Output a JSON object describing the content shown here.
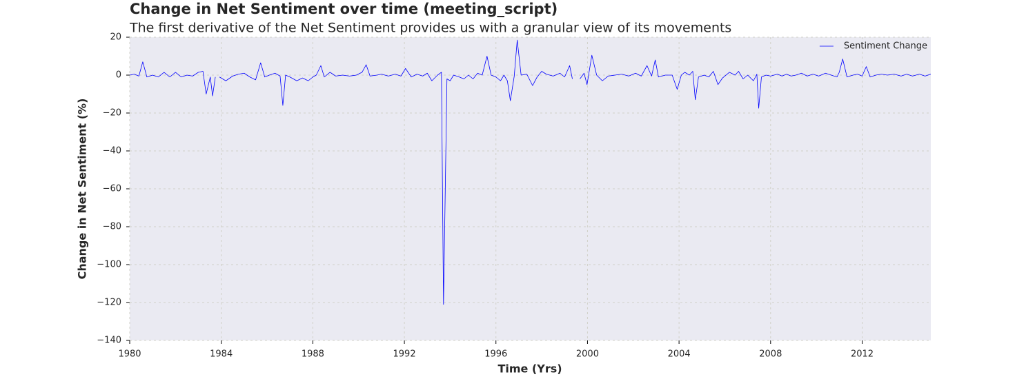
{
  "chart_data": {
    "type": "line",
    "title": "Change in Net Sentiment over time (meeting_script)",
    "subtitle": "The first derivative of the Net Sentiment provides us with a granular view of its movements",
    "x_label": "Time (Yrs)",
    "y_label": "Change in Net Sentiment (%)",
    "xlim": [
      1980,
      2015
    ],
    "ylim": [
      -140,
      20
    ],
    "xticks": [
      1980,
      1984,
      1988,
      1992,
      1996,
      2000,
      2004,
      2008,
      2012
    ],
    "yticks": [
      {
        "value": -140,
        "label": "−140"
      },
      {
        "value": -120,
        "label": "−120"
      },
      {
        "value": -100,
        "label": "−100"
      },
      {
        "value": -80,
        "label": "−80"
      },
      {
        "value": -60,
        "label": "−60"
      },
      {
        "value": -40,
        "label": "−40"
      },
      {
        "value": -20,
        "label": "−20"
      },
      0,
      20
    ],
    "grid": true,
    "legend": "upper right",
    "x": [
      1980.0,
      1980.2,
      1980.4,
      1980.57,
      1980.75,
      1981.0,
      1981.25,
      1981.5,
      1981.75,
      1982.0,
      1982.25,
      1982.5,
      1982.75,
      1983.0,
      1983.2,
      1983.34,
      1983.52,
      1983.62,
      1983.74,
      1983.83,
      1983.92,
      1984.2,
      1984.5,
      1984.75,
      1985.0,
      1985.25,
      1985.5,
      1985.72,
      1985.9,
      1986.1,
      1986.35,
      1986.57,
      1986.69,
      1986.81,
      1987.0,
      1987.3,
      1987.55,
      1987.8,
      1988.0,
      1988.15,
      1988.35,
      1988.5,
      1988.75,
      1989.0,
      1989.3,
      1989.6,
      1989.9,
      1990.15,
      1990.33,
      1990.5,
      1990.8,
      1991.0,
      1991.3,
      1991.6,
      1991.85,
      1992.05,
      1992.3,
      1992.55,
      1992.8,
      1993.0,
      1993.2,
      1993.45,
      1993.62,
      1993.71,
      1993.86,
      1994.0,
      1994.15,
      1994.4,
      1994.6,
      1994.8,
      1995.0,
      1995.2,
      1995.4,
      1995.61,
      1995.79,
      1996.0,
      1996.2,
      1996.35,
      1996.5,
      1996.63,
      1996.8,
      1996.93,
      1997.1,
      1997.35,
      1997.6,
      1997.8,
      1998.0,
      1998.2,
      1998.5,
      1998.8,
      1999.0,
      1999.22,
      1999.34,
      1999.5,
      1999.67,
      1999.85,
      1999.98,
      2000.19,
      2000.4,
      2000.65,
      2000.9,
      2001.2,
      2001.5,
      2001.8,
      2002.1,
      2002.35,
      2002.6,
      2002.8,
      2002.96,
      2003.1,
      2003.4,
      2003.7,
      2003.92,
      2004.1,
      2004.25,
      2004.45,
      2004.6,
      2004.71,
      2004.85,
      2005.1,
      2005.3,
      2005.5,
      2005.7,
      2005.9,
      2006.2,
      2006.45,
      2006.6,
      2006.8,
      2007.0,
      2007.25,
      2007.4,
      2007.48,
      2007.6,
      2007.8,
      2008.0,
      2008.3,
      2008.5,
      2008.7,
      2008.9,
      2009.1,
      2009.35,
      2009.6,
      2009.85,
      2010.1,
      2010.4,
      2010.65,
      2010.9,
      2011.0,
      2011.15,
      2011.34,
      2011.6,
      2011.8,
      2012.0,
      2012.18,
      2012.35,
      2012.6,
      2012.85,
      2013.1,
      2013.4,
      2013.7,
      2013.95,
      2014.2,
      2014.5,
      2014.75,
      2015.0
    ],
    "series": [
      {
        "name": "Sentiment Change",
        "color": "#0000ff",
        "values": [
          0,
          0.5,
          -0.5,
          7,
          -1,
          0,
          -1,
          1.5,
          -1,
          1.5,
          -1,
          0,
          -0.5,
          1.5,
          2,
          -10,
          -1,
          -11,
          -1,
          null,
          -1,
          -3,
          -0.5,
          0.5,
          1,
          -1,
          -2.5,
          6.5,
          -1,
          0,
          1,
          -0.5,
          -16,
          0,
          -1,
          -3,
          -1.5,
          -3,
          -1,
          0,
          5,
          -1,
          1.5,
          -0.5,
          0,
          -0.5,
          0,
          1.5,
          5.5,
          -0.5,
          0,
          0.5,
          -0.5,
          0.5,
          -0.5,
          3.5,
          -1,
          0.5,
          -0.5,
          1,
          -3,
          0,
          1.5,
          -121,
          -2,
          -3,
          0,
          -1,
          -2,
          0,
          -2,
          1,
          0,
          10,
          0,
          -1,
          -3,
          0,
          -3,
          -13.5,
          -0.5,
          18.5,
          0,
          0.5,
          -5.5,
          -1,
          2,
          0.5,
          -0.5,
          1,
          -1,
          5,
          -2,
          null,
          -2,
          1,
          -5,
          10.5,
          0,
          -3,
          -0.5,
          0,
          0.5,
          -0.5,
          1,
          -0.5,
          5,
          -0.5,
          8,
          -1,
          0,
          0,
          -7.5,
          0,
          1.5,
          0,
          2,
          -13,
          -1,
          0,
          -1,
          2,
          -5,
          -1.5,
          1.5,
          0,
          2,
          -2,
          0,
          -3,
          0.5,
          -17.5,
          -1,
          0,
          -0.5,
          0.5,
          -0.5,
          0.5,
          -0.5,
          0,
          1,
          -0.5,
          0.5,
          -0.5,
          1,
          0,
          -1,
          1.5,
          8.5,
          -1,
          0,
          0.5,
          -0.5,
          4.5,
          -1,
          0,
          0.5,
          0,
          0.5,
          -0.5,
          0.5,
          -0.5,
          0.5,
          -0.5,
          0.5
        ]
      }
    ]
  }
}
